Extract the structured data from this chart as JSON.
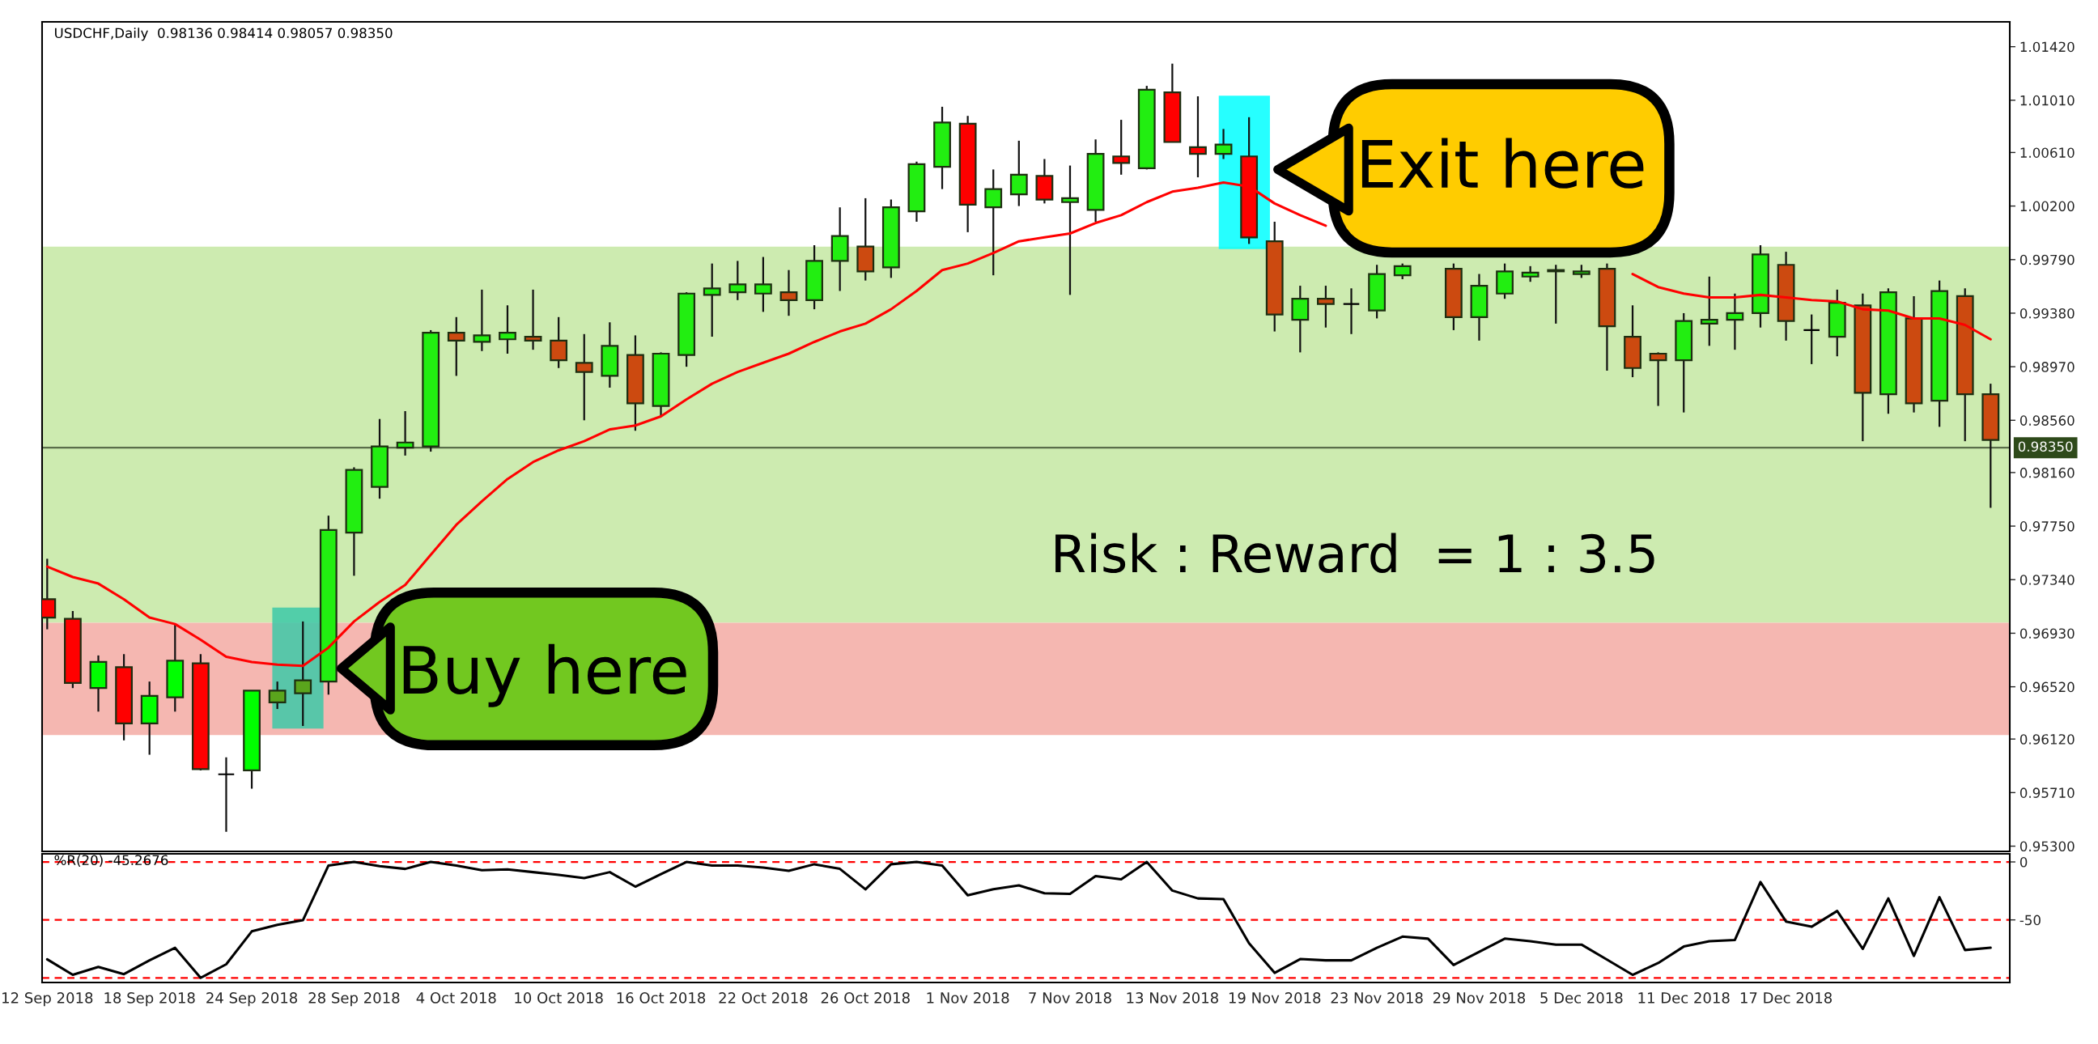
{
  "chart_data": [
    {
      "type": "candlestick",
      "title": "USDCHF,Daily  0.98136 0.98414 0.98057 0.98350",
      "categories": [
        null,
        null,
        null,
        null,
        null,
        null,
        null,
        null,
        null,
        null,
        null,
        null,
        null,
        null,
        null,
        null,
        null,
        null,
        null,
        null,
        null,
        null,
        null,
        null,
        null,
        null,
        null,
        null,
        null,
        null,
        null,
        null,
        null,
        null,
        null,
        null,
        null,
        null,
        null,
        null,
        null,
        null,
        null,
        null,
        null,
        null,
        null,
        null,
        null,
        null,
        null,
        null,
        null,
        null,
        null,
        null,
        null,
        null,
        null,
        null,
        null,
        null,
        null,
        null,
        null,
        null,
        null,
        null,
        null,
        null,
        null,
        null,
        null,
        null,
        null,
        null,
        null
      ],
      "ohlc": [
        [
          0.9719,
          0.975,
          0.9696,
          0.9705
        ],
        [
          0.9704,
          0.971,
          0.9651,
          0.9655
        ],
        [
          0.9651,
          0.9676,
          0.9633,
          0.9671
        ],
        [
          0.9667,
          0.9677,
          0.9611,
          0.9624
        ],
        [
          0.9624,
          0.9656,
          0.96,
          0.9645
        ],
        [
          0.9644,
          0.97,
          0.9633,
          0.9672
        ],
        [
          0.967,
          0.9677,
          0.9588,
          0.9589
        ],
        [
          0.9585,
          0.9598,
          0.9541,
          0.9585
        ],
        [
          0.9588,
          0.9649,
          0.9574,
          0.9649
        ],
        [
          0.964,
          0.9656,
          0.9635,
          0.9649
        ],
        [
          0.9647,
          0.9702,
          0.9622,
          0.9657
        ],
        [
          0.9656,
          0.9783,
          0.9646,
          0.9772
        ],
        [
          0.977,
          0.982,
          0.9737,
          0.9818
        ],
        [
          0.9805,
          0.9857,
          0.9796,
          0.9836
        ],
        [
          0.9835,
          0.9863,
          0.9829,
          0.9839
        ],
        [
          0.9836,
          0.9925,
          0.9832,
          0.9923
        ],
        [
          0.9923,
          0.9935,
          0.989,
          0.9917
        ],
        [
          0.9916,
          0.9956,
          0.9909,
          0.9921
        ],
        [
          0.9918,
          0.9944,
          0.9907,
          0.9923
        ],
        [
          0.992,
          0.9956,
          0.991,
          0.9917
        ],
        [
          0.9917,
          0.9935,
          0.9896,
          0.9902
        ],
        [
          0.99,
          0.9922,
          0.9856,
          0.9893
        ],
        [
          0.989,
          0.9931,
          0.9881,
          0.9913
        ],
        [
          0.9906,
          0.9921,
          0.9848,
          0.9869
        ],
        [
          0.9867,
          0.9908,
          0.9859,
          0.9907
        ],
        [
          0.9906,
          0.9954,
          0.9897,
          0.9953
        ],
        [
          0.9952,
          0.9976,
          0.992,
          0.9957
        ],
        [
          0.9954,
          0.9978,
          0.9948,
          0.996
        ],
        [
          0.9953,
          0.9981,
          0.9939,
          0.996
        ],
        [
          0.9954,
          0.9971,
          0.9936,
          0.9948
        ],
        [
          0.9948,
          0.999,
          0.9941,
          0.9978
        ],
        [
          0.9978,
          1.0019,
          0.9955,
          0.9997
        ],
        [
          0.9989,
          1.0026,
          0.9963,
          0.997
        ],
        [
          0.9973,
          1.0025,
          0.9965,
          1.0019
        ],
        [
          1.0016,
          1.0054,
          1.0008,
          1.0052
        ],
        [
          1.005,
          1.0096,
          1.0033,
          1.0084
        ],
        [
          1.0083,
          1.0089,
          1.0,
          1.0021
        ],
        [
          1.0019,
          1.0048,
          0.9967,
          1.0033
        ],
        [
          1.0029,
          1.007,
          1.002,
          1.0044
        ],
        [
          1.0043,
          1.0056,
          1.0022,
          1.0025
        ],
        [
          1.0023,
          1.0051,
          0.9952,
          1.0026
        ],
        [
          1.0017,
          1.0071,
          1.0008,
          1.006
        ],
        [
          1.0058,
          1.0086,
          1.0044,
          1.0053
        ],
        [
          1.0049,
          1.0112,
          1.0048,
          1.0109
        ],
        [
          1.0107,
          1.0129,
          1.0069,
          1.0069
        ],
        [
          1.0065,
          1.0104,
          1.0042,
          1.006
        ],
        [
          1.006,
          1.0079,
          1.0056,
          1.0067
        ],
        [
          1.0058,
          1.0088,
          0.9991,
          0.9996
        ],
        [
          0.9993,
          1.0008,
          0.9924,
          0.9937
        ],
        [
          0.9933,
          0.9959,
          0.9908,
          0.9949
        ],
        [
          0.9949,
          0.9959,
          0.9927,
          0.9945
        ],
        [
          0.9945,
          0.9957,
          0.9922,
          0.9945
        ],
        [
          0.994,
          0.9975,
          0.9934,
          0.9968
        ],
        [
          0.9967,
          0.9976,
          0.9964,
          0.9974
        ],
        null,
        [
          0.9972,
          0.9976,
          0.9925,
          0.9935
        ],
        [
          0.9935,
          0.9968,
          0.9917,
          0.9959
        ],
        [
          0.9953,
          0.9976,
          0.9949,
          0.997
        ],
        [
          0.9966,
          0.9974,
          0.9962,
          0.9969
        ],
        [
          0.997,
          0.9975,
          0.993,
          0.9971
        ],
        [
          0.9968,
          0.9975,
          0.9965,
          0.997
        ],
        [
          0.9972,
          0.9976,
          0.9894,
          0.9928
        ],
        [
          0.992,
          0.9944,
          0.9889,
          0.9896
        ],
        [
          0.9907,
          0.9908,
          0.9867,
          0.9902
        ],
        [
          0.9902,
          0.9938,
          0.9862,
          0.9932
        ],
        [
          0.993,
          0.9966,
          0.9913,
          0.9933
        ],
        [
          0.9933,
          0.9953,
          0.991,
          0.9938
        ],
        [
          0.9938,
          0.999,
          0.9927,
          0.9983
        ],
        [
          0.9975,
          0.9985,
          0.9917,
          0.9932
        ],
        [
          0.9925,
          0.9937,
          0.9899,
          0.9925
        ],
        [
          0.992,
          0.9956,
          0.9905,
          0.9946
        ],
        [
          0.9944,
          0.9953,
          0.984,
          0.9877
        ],
        [
          0.9876,
          0.9957,
          0.9861,
          0.9954
        ],
        [
          0.9934,
          0.9951,
          0.9862,
          0.9869
        ],
        [
          0.9871,
          0.9963,
          0.9851,
          0.9955
        ],
        [
          0.9951,
          0.9957,
          0.984,
          0.9876
        ],
        [
          0.9876,
          0.9884,
          0.9789,
          0.9841
        ]
      ],
      "colors": [
        "#ff0000",
        "#ff0000",
        "#00ff00",
        "#ff0000",
        "#00ff00",
        "#00ff00",
        "#ff0000",
        "#000000",
        "#00ff00",
        "#5aa51c",
        "#5aa51c",
        "#22ee11",
        "#22ee11",
        "#22ee11",
        "#22ee11",
        "#22ee11",
        "#cc4a10",
        "#22ee11",
        "#22ee11",
        "#cc4a10",
        "#cc4a10",
        "#cc4a10",
        "#22ee11",
        "#cc4a10",
        "#22ee11",
        "#22ee11",
        "#22ee11",
        "#22ee11",
        "#22ee11",
        "#cc4a10",
        "#22ee11",
        "#22ee11",
        "#cc4a10",
        "#22ee11",
        "#22ee11",
        "#22ee11",
        "#ff0000",
        "#22ee11",
        "#22ee11",
        "#ff0000",
        "#22ee11",
        "#22ee11",
        "#ff0000",
        "#22ee11",
        "#ff0000",
        "#ff0000",
        "#22ee11",
        "#ff0000",
        "#cc4a10",
        "#22ee11",
        "#cc4a10",
        "#000000",
        "#22ee11",
        "#22ee11",
        "#22ee11",
        "#cc4a10",
        "#22ee11",
        "#22ee11",
        "#22ee11",
        "#000000",
        "#22ee11",
        "#cc4a10",
        "#cc4a10",
        "#cc4a10",
        "#22ee11",
        "#22ee11",
        "#22ee11",
        "#22ee11",
        "#cc4a10",
        "#000000",
        "#22ee11",
        "#cc4a10",
        "#22ee11",
        "#cc4a10",
        "#22ee11",
        "#cc4a10",
        "#cc4a10"
      ],
      "series": [
        {
          "type": "line",
          "color": "#ff0000",
          "values": [
            0.9744,
            0.9736,
            0.9731,
            0.9719,
            0.9705,
            0.97,
            0.9688,
            0.9675,
            0.9671,
            0.9669,
            0.9668,
            0.9682,
            0.9702,
            0.9717,
            0.973,
            0.9753,
            0.9776,
            0.9794,
            0.9811,
            0.9824,
            0.9833,
            0.984,
            0.9849,
            0.9852,
            0.9859,
            0.9872,
            0.9884,
            0.9893,
            0.99,
            0.9907,
            0.9916,
            0.9924,
            0.993,
            0.9941,
            0.9955,
            0.9971,
            0.9976,
            0.9984,
            0.9993,
            0.9996,
            0.9999,
            1.0007,
            1.0013,
            1.0023,
            1.0031,
            1.0034,
            1.0038,
            1.0035,
            1.0022,
            1.0013,
            1.0005,
            null,
            null,
            null,
            null,
            null,
            null,
            null,
            null,
            null,
            null,
            null,
            0.9968,
            0.9958,
            0.9953,
            0.995,
            0.995,
            0.9952,
            0.995,
            0.9948,
            0.9947,
            0.9941,
            0.994,
            0.9934,
            0.9934,
            0.9929,
            0.9918
          ]
        }
      ],
      "ylim": [
        0.9526,
        1.0161
      ],
      "yticks": [
        {
          "value": 0.953,
          "label": "0.95300"
        },
        {
          "value": 0.9571,
          "label": "0.95710"
        },
        {
          "value": 0.9612,
          "label": "0.96120"
        },
        {
          "value": 0.9652,
          "label": "0.96520"
        },
        {
          "value": 0.9693,
          "label": "0.96930"
        },
        {
          "value": 0.9734,
          "label": "0.97340"
        },
        {
          "value": 0.9775,
          "label": "0.97750"
        },
        {
          "value": 0.9816,
          "label": "0.98160"
        },
        {
          "value": 0.9856,
          "label": "0.98560"
        },
        {
          "value": 0.9897,
          "label": "0.98970"
        },
        {
          "value": 0.9938,
          "label": "0.99380"
        },
        {
          "value": 0.9979,
          "label": "0.99790"
        },
        {
          "value": 1.002,
          "label": "1.00200"
        },
        {
          "value": 1.0061,
          "label": "1.00610"
        },
        {
          "value": 1.0101,
          "label": "1.01010"
        },
        {
          "value": 1.0142,
          "label": "1.01420"
        }
      ],
      "tick_labels": "y",
      "ref_lines": [
        {
          "axis": "y",
          "value": 0.9835,
          "label": "0.98350",
          "color": "#5a6e4a"
        }
      ],
      "bands": [
        {
          "axis": "y",
          "from": 0.9701,
          "to": 0.9989,
          "color": "#cdebb0"
        },
        {
          "axis": "y",
          "from": 0.9615,
          "to": 0.9701,
          "color": "#f5b7b1"
        }
      ],
      "annotations": [
        "Buy here",
        "Exit here",
        "Risk : Reward  = 1 : 3.5"
      ]
    },
    {
      "type": "line",
      "title": "%R(20) -45.2676",
      "categories": [
        "12 Sep 2018",
        null,
        null,
        null,
        "18 Sep 2018",
        null,
        null,
        null,
        "24 Sep 2018",
        null,
        null,
        null,
        "28 Sep 2018",
        null,
        null,
        null,
        "4 Oct 2018",
        null,
        null,
        null,
        "10 Oct 2018",
        null,
        null,
        null,
        "16 Oct 2018",
        null,
        null,
        null,
        "22 Oct 2018",
        null,
        null,
        null,
        "26 Oct 2018",
        null,
        null,
        null,
        "1 Nov 2018",
        null,
        null,
        null,
        "7 Nov 2018",
        null,
        null,
        null,
        "13 Nov 2018",
        null,
        null,
        null,
        "19 Nov 2018",
        null,
        null,
        null,
        "23 Nov 2018",
        null,
        null,
        null,
        "29 Nov 2018",
        null,
        null,
        null,
        "5 Dec 2018",
        null,
        null,
        null,
        "11 Dec 2018",
        null,
        null,
        null,
        "17 Dec 2018",
        null,
        null,
        null,
        null,
        null,
        null,
        null,
        null
      ],
      "series": [
        {
          "color": "#000000",
          "values": [
            -84,
            -97.4,
            -90.6,
            -96.8,
            -84.9,
            -74.1,
            -100,
            -88.3,
            -59.9,
            -54.2,
            -50.3,
            -3.1,
            0,
            -3.7,
            -6,
            0,
            -3.1,
            -7.1,
            -6.5,
            -8.8,
            -11.1,
            -13.9,
            -8.8,
            -21.3,
            -10.5,
            0,
            -3.1,
            -3.1,
            -4.8,
            -7.7,
            -2,
            -6,
            -23.6,
            -2,
            0,
            -3.1,
            -28.7,
            -23.6,
            -20.2,
            -27,
            -27.5,
            -12.2,
            -15,
            0,
            -24.7,
            -31.5,
            -32.1,
            -70.1,
            -95.7,
            -83.8,
            -84.9,
            -84.9,
            -74.1,
            -64.4,
            -66.2,
            -88.9,
            -77.5,
            -66.2,
            -68.4,
            -71.3,
            -71.3,
            -84.3,
            -97.4,
            -87.2,
            -73,
            -68.4,
            -67.3,
            -17.3,
            -51.4,
            -55.9,
            -42.3,
            -75,
            -31.5,
            -81,
            -30.4,
            -76,
            -74
          ]
        }
      ],
      "ylim": [
        -104,
        7
      ],
      "yticks": [
        0,
        {
          "value": -50,
          "label": "-50"
        }
      ],
      "ref_lines": [
        {
          "axis": "y",
          "value": 0,
          "color": "#ff0000",
          "line_style": "dashed"
        },
        {
          "axis": "y",
          "value": -50,
          "color": "#ff0000",
          "line_style": "dashed"
        },
        {
          "axis": "y",
          "value": -100,
          "color": "#ff0000",
          "line_style": "dashed"
        }
      ]
    }
  ]
}
